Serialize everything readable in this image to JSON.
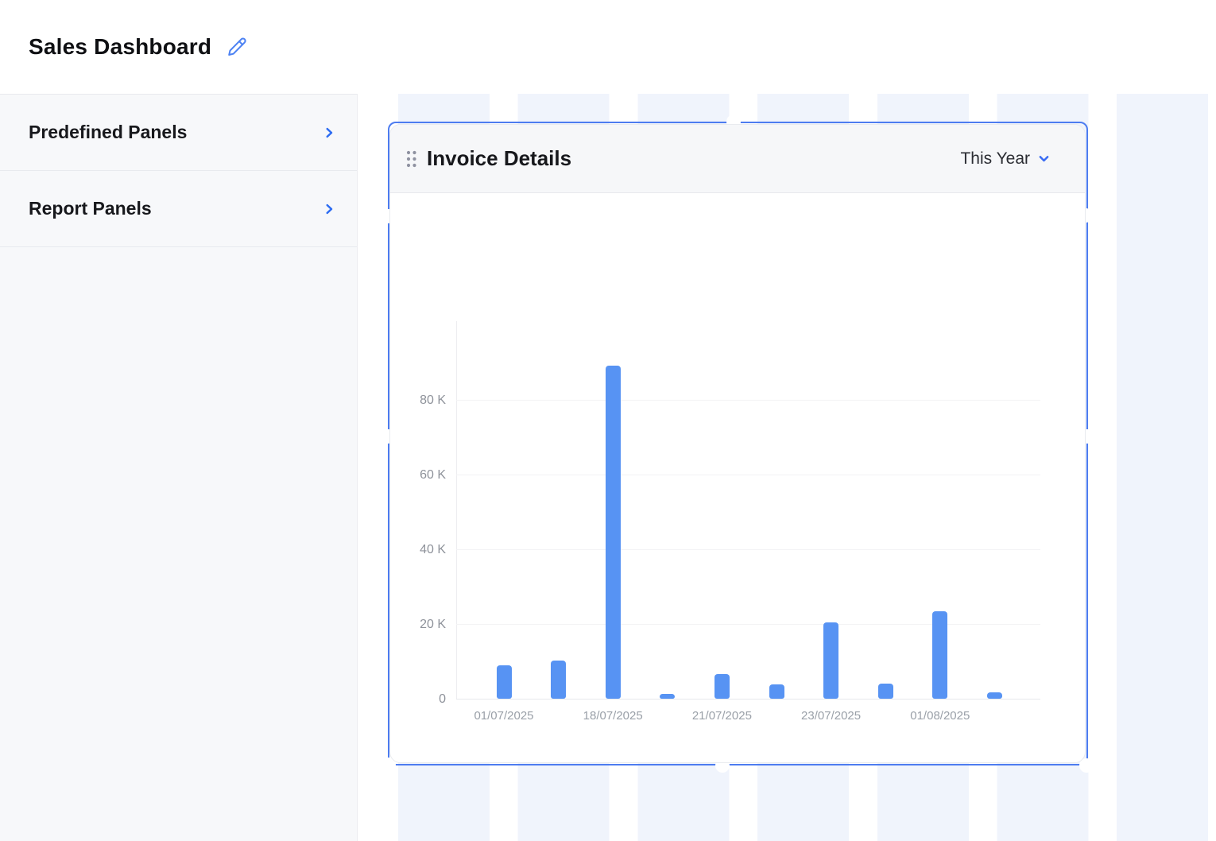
{
  "header": {
    "title": "Sales Dashboard"
  },
  "sidebar": {
    "items": [
      {
        "label": "Predefined Panels"
      },
      {
        "label": "Report Panels"
      }
    ]
  },
  "panel": {
    "title": "Invoice Details",
    "period_selector": {
      "value": "This Year"
    }
  },
  "icons": {
    "edit": "pencil-icon",
    "sidebar_expand": "chevron-right-icon",
    "period_dropdown": "chevron-down-icon",
    "panel_drag": "drag-handle-icon"
  },
  "colors": {
    "accent_blue": "#2e6df2",
    "bar_blue": "#5793f3",
    "selection_border": "#4d7cf0",
    "grid_stripe": "#f0f4fc",
    "panel_header_bg": "#f6f7f9",
    "sidebar_bg": "#f7f8fa",
    "tick_gray": "#8f939b"
  },
  "chart_data": {
    "type": "bar",
    "title": "Invoice Details",
    "series": [
      {
        "name": "Invoice Details",
        "values": [
          8900,
          10300,
          89200,
          1300,
          6600,
          3900,
          20500,
          4000,
          23400,
          1700
        ]
      }
    ],
    "x_tick_labels": [
      "01/07/2025",
      "18/07/2025",
      "21/07/2025",
      "23/07/2025",
      "01/08/2025"
    ],
    "x_tick_bar_indices": [
      0,
      2,
      4,
      6,
      8
    ],
    "y_ticks": [
      0,
      20000,
      40000,
      60000,
      80000
    ],
    "y_tick_labels": [
      "0",
      "20 K",
      "40 K",
      "60 K",
      "80 K"
    ],
    "ylim": [
      0,
      100000
    ],
    "grid": true,
    "legend": false,
    "bar_color": "#5793f3"
  }
}
